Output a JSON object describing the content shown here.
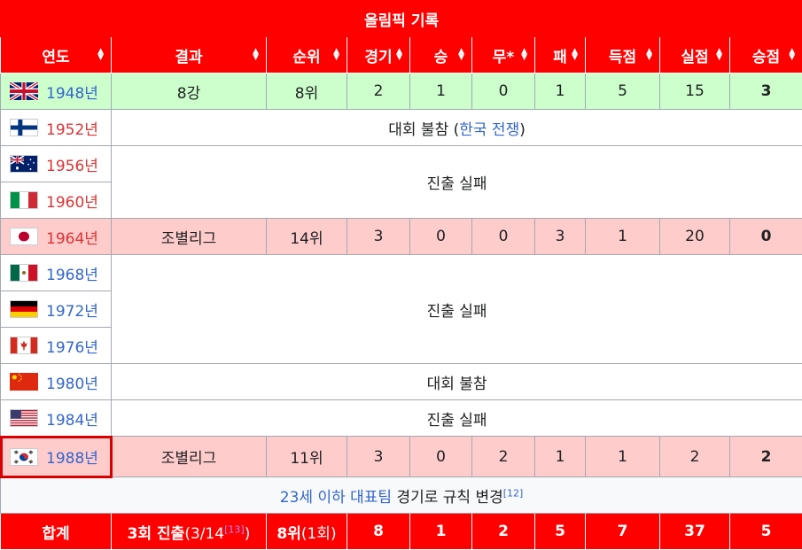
{
  "title": "올림픽 기록",
  "headers": [
    "연도",
    "결과",
    "순위",
    "경기",
    "승",
    "무*",
    "패",
    "득점",
    "실점",
    "승점"
  ],
  "sort_icon": "sort-arrows-icon",
  "rows": {
    "r1948": {
      "year": "1948년",
      "flag": "uk-flag-icon",
      "result": "8강",
      "rank": "8위",
      "gp": "2",
      "w": "1",
      "d": "0",
      "l": "1",
      "gf": "5",
      "ga": "15",
      "pts": "3"
    },
    "r1952": {
      "year": "1952년",
      "flag": "finland-flag-icon",
      "note_prefix": "대회 불참 (",
      "note_link": "한국 전쟁",
      "note_suffix": ")"
    },
    "r1956": {
      "year": "1956년",
      "flag": "australia-flag-icon"
    },
    "r1960": {
      "year": "1960년",
      "flag": "italy-flag-icon",
      "note": "진출 실패"
    },
    "r1964": {
      "year": "1964년",
      "flag": "japan-flag-icon",
      "result": "조별리그",
      "rank": "14위",
      "gp": "3",
      "w": "0",
      "d": "0",
      "l": "3",
      "gf": "1",
      "ga": "20",
      "pts": "0"
    },
    "r1968": {
      "year": "1968년",
      "flag": "mexico-flag-icon"
    },
    "r1972": {
      "year": "1972년",
      "flag": "germany-flag-icon",
      "note": "진출 실패"
    },
    "r1976": {
      "year": "1976년",
      "flag": "canada-flag-icon"
    },
    "r1980": {
      "year": "1980년",
      "flag": "china-flag-icon",
      "note": "대회 불참"
    },
    "r1984": {
      "year": "1984년",
      "flag": "usa-flag-icon",
      "note": "진출 실패"
    },
    "r1988": {
      "year": "1988년",
      "flag": "korea-flag-icon",
      "result": "조별리그",
      "rank": "11위",
      "gp": "3",
      "w": "0",
      "d": "2",
      "l": "1",
      "gf": "1",
      "ga": "2",
      "pts": "2"
    }
  },
  "u23_note": {
    "link": "23세 이하 대표팀",
    "text": " 경기로 규칙 변경",
    "ref": "[12]"
  },
  "total": {
    "label": "합계",
    "result_main": "3회 진출",
    "result_sub_open": "(3/14",
    "result_ref": "[13]",
    "result_sub_close": ")",
    "rank_main": "8위",
    "rank_sub": "(1회)",
    "gp": "8",
    "w": "1",
    "d": "2",
    "l": "5",
    "gf": "7",
    "ga": "37",
    "pts": "5"
  },
  "colors": {
    "header_red": "#ff0000",
    "green_row": "#ccffcc",
    "pink_row": "#ffcccc",
    "link_blue": "#3366cc",
    "link_red": "#d33333",
    "highlight": "#d60000"
  }
}
